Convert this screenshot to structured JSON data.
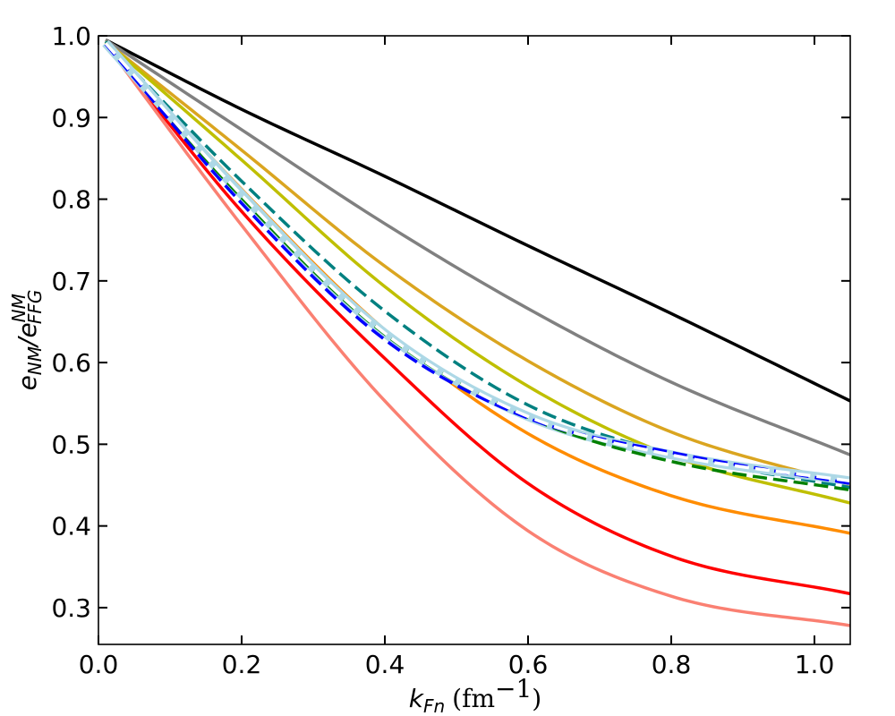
{
  "chart_data": {
    "type": "line",
    "title": "",
    "xlabel": {
      "var": "k",
      "var_sub": "Fn",
      "unit_open": "(fm",
      "unit_sup": "−1",
      "unit_close": ")"
    },
    "ylabel": {
      "e1": "e",
      "sub1": "NM",
      "slash": "/",
      "e2": "e",
      "sup2": "NM",
      "sub2": "FFG"
    },
    "xlim": [
      0.0,
      1.05
    ],
    "ylim": [
      0.255,
      1.0
    ],
    "xticks": [
      0.0,
      0.2,
      0.4,
      0.6,
      0.8,
      1.0
    ],
    "xtick_labels": [
      "0.0",
      "0.2",
      "0.4",
      "0.6",
      "0.8",
      "1.0"
    ],
    "yticks": [
      0.3,
      0.4,
      0.5,
      0.6,
      0.7,
      0.8,
      0.9,
      1.0
    ],
    "ytick_labels": [
      "0.3",
      "0.4",
      "0.5",
      "0.6",
      "0.7",
      "0.8",
      "0.9",
      "1.0"
    ],
    "series": [
      {
        "name": "black",
        "color": "#000000",
        "dash": "solid",
        "width": 3.5,
        "x": [
          0.01,
          0.2,
          0.4,
          0.6,
          0.8,
          1.05
        ],
        "y": [
          0.995,
          0.91,
          0.828,
          0.743,
          0.66,
          0.553
        ]
      },
      {
        "name": "gray",
        "color": "#808080",
        "dash": "solid",
        "width": 3.5,
        "x": [
          0.01,
          0.2,
          0.4,
          0.6,
          0.8,
          1.05
        ],
        "y": [
          0.995,
          0.885,
          0.77,
          0.666,
          0.576,
          0.487
        ]
      },
      {
        "name": "goldenrod",
        "color": "#DAA520",
        "dash": "solid",
        "width": 3.5,
        "x": [
          0.01,
          0.2,
          0.4,
          0.6,
          0.8,
          1.05
        ],
        "y": [
          0.993,
          0.86,
          0.718,
          0.602,
          0.515,
          0.45
        ]
      },
      {
        "name": "olive-yellow",
        "color": "#BFBF00",
        "dash": "solid",
        "width": 3.5,
        "x": [
          0.01,
          0.2,
          0.4,
          0.6,
          0.8,
          1.05
        ],
        "y": [
          0.993,
          0.848,
          0.693,
          0.571,
          0.486,
          0.428
        ]
      },
      {
        "name": "orange",
        "color": "#FF8C00",
        "dash": "solid",
        "width": 3.5,
        "x": [
          0.01,
          0.2,
          0.4,
          0.6,
          0.8,
          1.05
        ],
        "y": [
          0.992,
          0.812,
          0.64,
          0.513,
          0.437,
          0.391
        ]
      },
      {
        "name": "red",
        "color": "#FF0000",
        "dash": "solid",
        "width": 3.5,
        "x": [
          0.01,
          0.2,
          0.4,
          0.6,
          0.8,
          1.05
        ],
        "y": [
          0.99,
          0.785,
          0.605,
          0.452,
          0.363,
          0.317
        ]
      },
      {
        "name": "salmon",
        "color": "#FA8072",
        "dash": "solid",
        "width": 3.5,
        "x": [
          0.01,
          0.2,
          0.4,
          0.6,
          0.8,
          1.05
        ],
        "y": [
          0.99,
          0.768,
          0.553,
          0.394,
          0.314,
          0.278
        ]
      },
      {
        "name": "teal-dashed",
        "color": "#008080",
        "dash": "dashed",
        "width": 3.5,
        "x": [
          0.01,
          0.2,
          0.4,
          0.6,
          0.8,
          1.05
        ],
        "y": [
          0.993,
          0.822,
          0.663,
          0.548,
          0.488,
          0.447
        ]
      },
      {
        "name": "lightblue-thick",
        "color": "#ADD8E6",
        "dash": "solid",
        "width": 10,
        "x": [
          0.01,
          0.2,
          0.4,
          0.6,
          0.8,
          1.05
        ],
        "y": [
          0.991,
          0.806,
          0.636,
          0.534,
          0.487,
          0.455
        ]
      },
      {
        "name": "green-dashed",
        "color": "#008000",
        "dash": "dashed",
        "width": 3.5,
        "x": [
          0.01,
          0.2,
          0.4,
          0.6,
          0.8,
          1.05
        ],
        "y": [
          0.991,
          0.802,
          0.635,
          0.533,
          0.479,
          0.444
        ]
      },
      {
        "name": "blue-dashed",
        "color": "#0000FF",
        "dash": "dashed",
        "width": 3.5,
        "x": [
          0.01,
          0.2,
          0.4,
          0.6,
          0.8,
          1.05
        ],
        "y": [
          0.99,
          0.795,
          0.628,
          0.532,
          0.49,
          0.452
        ]
      },
      {
        "name": "white-dashed",
        "color": "#FFFFFF",
        "dash": "dashed",
        "width": 3.5,
        "x": [
          0.01,
          0.2,
          0.4,
          0.6,
          0.8,
          1.05
        ],
        "y": [
          0.991,
          0.805,
          0.636,
          0.534,
          0.487,
          0.455
        ]
      }
    ]
  }
}
